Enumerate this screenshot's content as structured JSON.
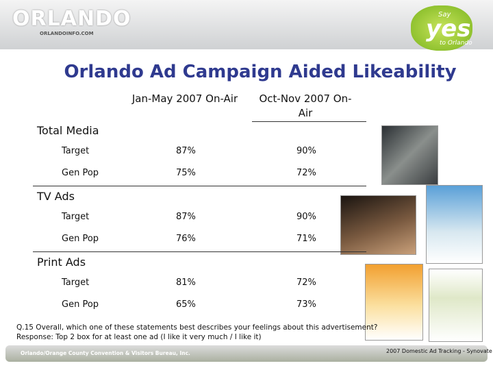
{
  "header": {
    "logo": "ORLANDO",
    "logo_sub": "ORLANDOINFO.COM",
    "badge_top": "Say",
    "badge_main": "yes",
    "badge_bottom": "to Orlando"
  },
  "title": "Orlando Ad Campaign Aided Likeability",
  "table": {
    "columns": [
      "Jan-May 2007 On-Air",
      "Oct-Nov 2007 On-Air"
    ],
    "sections": [
      {
        "name": "Total Media",
        "rows": [
          [
            "Target",
            "87%",
            "90%"
          ],
          [
            "Gen Pop",
            "75%",
            "72%"
          ]
        ]
      },
      {
        "name": "TV Ads",
        "rows": [
          [
            "Target",
            "87%",
            "90%"
          ],
          [
            "Gen Pop",
            "76%",
            "71%"
          ]
        ]
      },
      {
        "name": "Print Ads",
        "rows": [
          [
            "Target",
            "81%",
            "72%"
          ],
          [
            "Gen Pop",
            "65%",
            "73%"
          ]
        ]
      }
    ]
  },
  "footnote": [
    "Q.15  Overall, which one of these statements best describes your feelings about this advertisement?",
    "Response: Top 2 box for at least one ad (I like it very much / I like it)"
  ],
  "footer": {
    "left": "Orlando/Orange County Convention & Visitors Bureau, Inc.",
    "right": "2007 Domestic Ad Tracking - Synovate"
  }
}
